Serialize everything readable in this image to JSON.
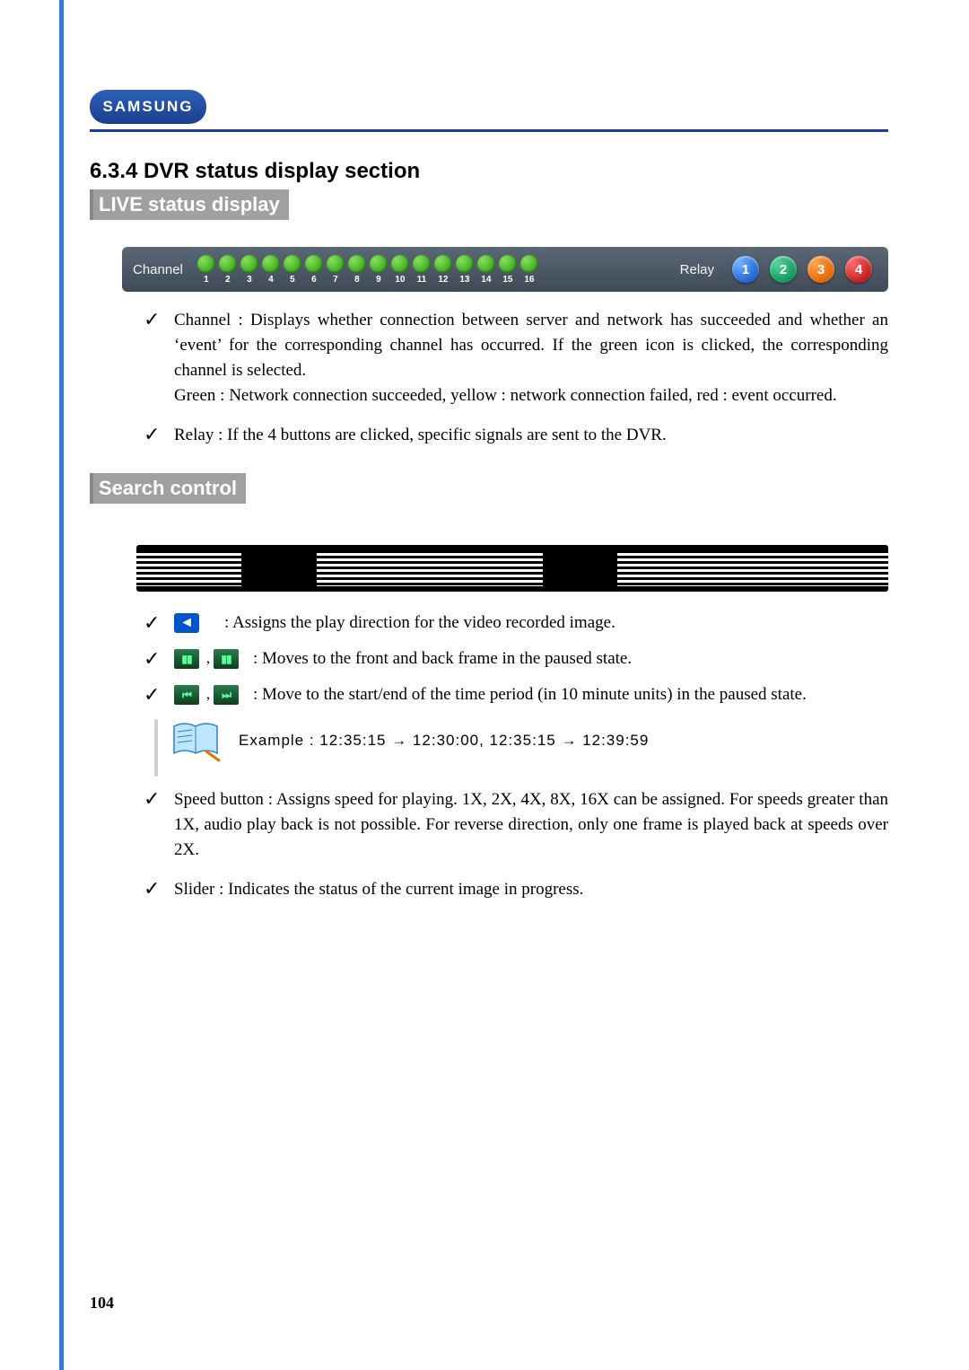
{
  "logo_text": "SAMSUNG",
  "section_heading": "6.3.4 DVR status display section",
  "live_badge": "LIVE status display",
  "status_bar": {
    "channel_label": "Channel",
    "channels": [
      "1",
      "2",
      "3",
      "4",
      "5",
      "6",
      "7",
      "8",
      "9",
      "10",
      "11",
      "12",
      "13",
      "14",
      "15",
      "16"
    ],
    "channel_dot_color": "#3aa91f",
    "relay_label": "Relay",
    "relays": [
      {
        "num": "1",
        "color": "#1d5fd1"
      },
      {
        "num": "2",
        "color": "#0c9657"
      },
      {
        "num": "3",
        "color": "#e06400"
      },
      {
        "num": "4",
        "color": "#c01818"
      }
    ],
    "bar_bg_top": "#5a6775",
    "bar_bg_bottom": "#3f4a56"
  },
  "live_bullets": {
    "b1": "Channel : Displays whether connection between server and network has succeeded and whether an ‘event’ for the corresponding channel has occurred. If the green icon is clicked, the corresponding channel is selected.",
    "b1b": "Green : Network connection succeeded, yellow : network connection failed, red : event occurred.",
    "b2": "Relay : If the 4 buttons are clicked, specific signals are sent to the DVR."
  },
  "search_badge": "Search control",
  "search_items": {
    "i1": ": Assigns the play direction for the video recorded image.",
    "i2": ": Moves to the front and back frame in the paused state.",
    "i3": ": Move to the start/end of the time period (in 10 minute units) in the paused state."
  },
  "example_text": "Example : 12:35:15 → 12:30:00, 12:35:15 → 12:39:59",
  "search_bullets": {
    "s1": "Speed button : Assigns speed for playing. 1X, 2X, 4X, 8X, 16X can be assigned. For speeds greater than 1X, audio play back is not possible. For reverse direction, only one frame is played back at speeds over 2X.",
    "s2": "Slider : Indicates the status of the current image in progress."
  },
  "page_number": "104",
  "colors": {
    "side_rule": "#3a7ad9",
    "top_rule": "#1a3f8f",
    "badge_bg": "#a0a0a0",
    "badge_text": "#ffffff",
    "body_text": "#000000"
  }
}
